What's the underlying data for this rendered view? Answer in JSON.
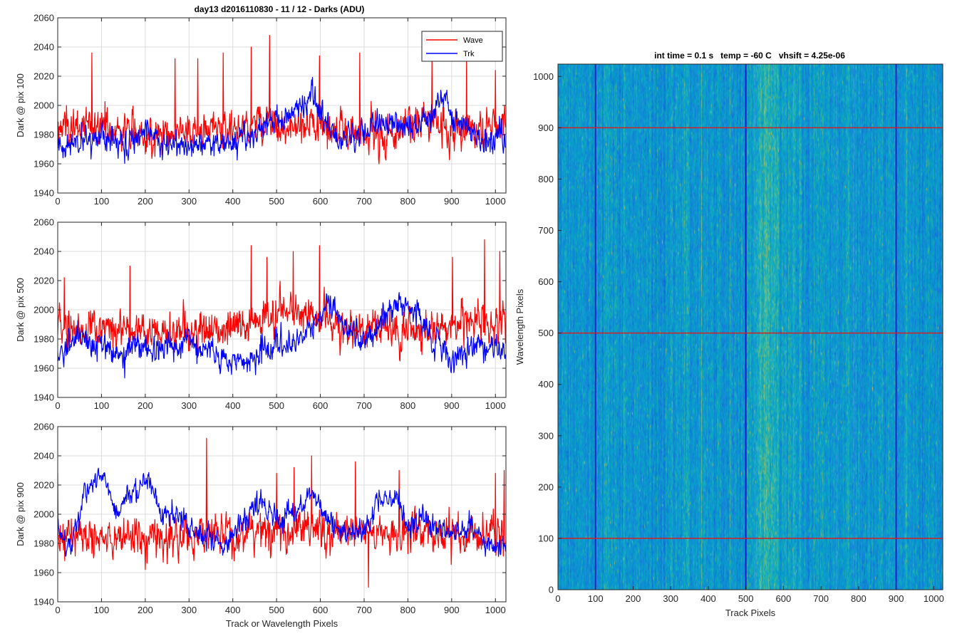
{
  "figure_title": "day13 d2016110830 - 11 / 12 - Darks (ADU)",
  "shared_xlabel": "Track or Wavelength Pixels",
  "colors": {
    "wave": "#ff0000",
    "trk": "#0000ff",
    "marker_red": "#d42020",
    "marker_blue": "#1a1ad0",
    "grid": "#dcdcdc"
  },
  "chart_data": [
    {
      "type": "line",
      "panel": "top",
      "title": "day13 d2016110830 - 11 / 12 - Darks (ADU)",
      "ylabel": "Dark @ pix 100",
      "xlabel": "",
      "xlim": [
        0,
        1024
      ],
      "ylim": [
        1940,
        2060
      ],
      "xticks": [
        0,
        100,
        200,
        300,
        400,
        500,
        600,
        700,
        800,
        900,
        1000
      ],
      "yticks": [
        1940,
        1960,
        1980,
        2000,
        2020,
        2040,
        2060
      ],
      "grid": true,
      "legend": {
        "placement": "top-right",
        "entries": [
          "Wave",
          "Trk"
        ]
      },
      "series": [
        {
          "name": "Wave",
          "color": "#ff0000",
          "n_points": 1024,
          "mean": 1984,
          "noise_std": 10,
          "spikes": [
            [
              78,
              2036
            ],
            [
              268,
              2032
            ],
            [
              320,
              2032
            ],
            [
              378,
              2036
            ],
            [
              442,
              2040
            ],
            [
              484,
              2048
            ],
            [
              598,
              2034
            ],
            [
              690,
              2036
            ],
            [
              855,
              2032
            ],
            [
              934,
              2031
            ],
            [
              1000,
              2024
            ]
          ],
          "envelope": [
            [
              0,
              1984
            ],
            [
              100,
              1986
            ],
            [
              200,
              1980
            ],
            [
              300,
              1983
            ],
            [
              400,
              1985
            ],
            [
              480,
              1990
            ],
            [
              530,
              1982
            ],
            [
              580,
              1986
            ],
            [
              650,
              1982
            ],
            [
              750,
              1980
            ],
            [
              830,
              1990
            ],
            [
              900,
              1984
            ],
            [
              1024,
              1986
            ]
          ]
        },
        {
          "name": "Trk",
          "color": "#0000ff",
          "n_points": 1024,
          "mean": 1976,
          "noise_std": 7,
          "envelope": [
            [
              0,
              1972
            ],
            [
              50,
              1976
            ],
            [
              100,
              1980
            ],
            [
              150,
              1974
            ],
            [
              200,
              1982
            ],
            [
              260,
              1972
            ],
            [
              330,
              1974
            ],
            [
              380,
              1974
            ],
            [
              420,
              1976
            ],
            [
              470,
              1984
            ],
            [
              500,
              1990
            ],
            [
              540,
              1994
            ],
            [
              580,
              2010
            ],
            [
              610,
              1988
            ],
            [
              650,
              1976
            ],
            [
              700,
              1982
            ],
            [
              760,
              1988
            ],
            [
              800,
              1984
            ],
            [
              850,
              1994
            ],
            [
              880,
              2006
            ],
            [
              920,
              1986
            ],
            [
              960,
              1976
            ],
            [
              1024,
              1978
            ]
          ]
        }
      ]
    },
    {
      "type": "line",
      "panel": "middle",
      "title": "",
      "ylabel": "Dark @ pix 500",
      "xlabel": "",
      "xlim": [
        0,
        1024
      ],
      "ylim": [
        1940,
        2060
      ],
      "xticks": [
        0,
        100,
        200,
        300,
        400,
        500,
        600,
        700,
        800,
        900,
        1000
      ],
      "yticks": [
        1940,
        1960,
        1980,
        2000,
        2020,
        2040,
        2060
      ],
      "grid": true,
      "series": [
        {
          "name": "Wave",
          "color": "#ff0000",
          "n_points": 1024,
          "mean": 1986,
          "noise_std": 10,
          "spikes": [
            [
              15,
              2022
            ],
            [
              165,
              2030
            ],
            [
              442,
              2044
            ],
            [
              478,
              2036
            ],
            [
              538,
              2040
            ],
            [
              598,
              2044
            ],
            [
              902,
              2036
            ],
            [
              975,
              2048
            ],
            [
              1010,
              2040
            ]
          ],
          "envelope": [
            [
              0,
              1988
            ],
            [
              100,
              1986
            ],
            [
              200,
              1984
            ],
            [
              300,
              1986
            ],
            [
              400,
              1986
            ],
            [
              450,
              1994
            ],
            [
              500,
              1996
            ],
            [
              560,
              1998
            ],
            [
              600,
              1996
            ],
            [
              700,
              1986
            ],
            [
              800,
              1988
            ],
            [
              900,
              1990
            ],
            [
              1024,
              1990
            ]
          ]
        },
        {
          "name": "Trk",
          "color": "#0000ff",
          "n_points": 1024,
          "mean": 1974,
          "noise_std": 7,
          "envelope": [
            [
              0,
              1970
            ],
            [
              60,
              1980
            ],
            [
              110,
              1976
            ],
            [
              150,
              1970
            ],
            [
              200,
              1974
            ],
            [
              260,
              1974
            ],
            [
              300,
              1980
            ],
            [
              360,
              1970
            ],
            [
              420,
              1964
            ],
            [
              470,
              1972
            ],
            [
              520,
              1976
            ],
            [
              580,
              1988
            ],
            [
              620,
              2004
            ],
            [
              660,
              1988
            ],
            [
              700,
              1980
            ],
            [
              750,
              1998
            ],
            [
              800,
              2006
            ],
            [
              840,
              1986
            ],
            [
              900,
              1964
            ],
            [
              950,
              1976
            ],
            [
              1024,
              1974
            ]
          ]
        }
      ]
    },
    {
      "type": "line",
      "panel": "bottom",
      "title": "",
      "ylabel": "Dark @ pix 900",
      "xlabel": "Track or Wavelength Pixels",
      "xlim": [
        0,
        1024
      ],
      "ylim": [
        1940,
        2060
      ],
      "xticks": [
        0,
        100,
        200,
        300,
        400,
        500,
        600,
        700,
        800,
        900,
        1000
      ],
      "yticks": [
        1940,
        1960,
        1980,
        2000,
        2020,
        2040,
        2060
      ],
      "grid": true,
      "series": [
        {
          "name": "Wave",
          "color": "#ff0000",
          "n_points": 1024,
          "mean": 1984,
          "noise_std": 10,
          "spikes": [
            [
              0,
              2028
            ],
            [
              340,
              2052
            ],
            [
              500,
              2028
            ],
            [
              540,
              2032
            ],
            [
              580,
              2040
            ],
            [
              680,
              2036
            ],
            [
              710,
              1950
            ],
            [
              780,
              2030
            ],
            [
              1000,
              2028
            ],
            [
              1020,
              2030
            ]
          ],
          "envelope": [
            [
              0,
              1984
            ],
            [
              100,
              1984
            ],
            [
              200,
              1982
            ],
            [
              300,
              1984
            ],
            [
              400,
              1986
            ],
            [
              500,
              1990
            ],
            [
              580,
              1992
            ],
            [
              650,
              1988
            ],
            [
              750,
              1986
            ],
            [
              850,
              1988
            ],
            [
              950,
              1986
            ],
            [
              1024,
              1988
            ]
          ]
        },
        {
          "name": "Trk",
          "color": "#0000ff",
          "n_points": 1024,
          "mean": 1996,
          "noise_std": 6,
          "envelope": [
            [
              0,
              1990
            ],
            [
              30,
              1976
            ],
            [
              60,
              2018
            ],
            [
              80,
              2020
            ],
            [
              110,
              2024
            ],
            [
              140,
              2000
            ],
            [
              160,
              2014
            ],
            [
              190,
              2018
            ],
            [
              210,
              2024
            ],
            [
              240,
              1996
            ],
            [
              270,
              2000
            ],
            [
              300,
              1992
            ],
            [
              340,
              1986
            ],
            [
              380,
              1978
            ],
            [
              420,
              1994
            ],
            [
              460,
              2008
            ],
            [
              500,
              1996
            ],
            [
              540,
              2000
            ],
            [
              580,
              2016
            ],
            [
              620,
              1994
            ],
            [
              660,
              1986
            ],
            [
              700,
              1990
            ],
            [
              740,
              2010
            ],
            [
              770,
              2012
            ],
            [
              800,
              1990
            ],
            [
              840,
              1996
            ],
            [
              880,
              1988
            ],
            [
              940,
              1992
            ],
            [
              990,
              1978
            ],
            [
              1024,
              1980
            ]
          ]
        }
      ]
    },
    {
      "type": "heatmap",
      "panel": "right",
      "title": "int time = 0.1 s   temp = -60 C   vhsift = 4.25e-06",
      "xlabel": "Track Pixels",
      "ylabel": "Wavelength Pixels",
      "xlim": [
        0,
        1024
      ],
      "ylim": [
        0,
        1024
      ],
      "xticks": [
        0,
        100,
        200,
        300,
        400,
        500,
        600,
        700,
        800,
        900,
        1000
      ],
      "yticks": [
        0,
        100,
        200,
        300,
        400,
        500,
        600,
        700,
        800,
        900,
        1000
      ],
      "colormap": "parula",
      "value_note": "dark noise field, brighter band around track pixels 520-620",
      "bright_band": [
        [
          520,
          0.55
        ],
        [
          560,
          0.75
        ],
        [
          600,
          0.55
        ]
      ],
      "horizontal_markers": {
        "color": "#d42020",
        "values": [
          100,
          500,
          900
        ]
      },
      "vertical_markers": {
        "color": "#1a1ad0",
        "values": [
          100,
          500,
          900
        ]
      }
    }
  ]
}
